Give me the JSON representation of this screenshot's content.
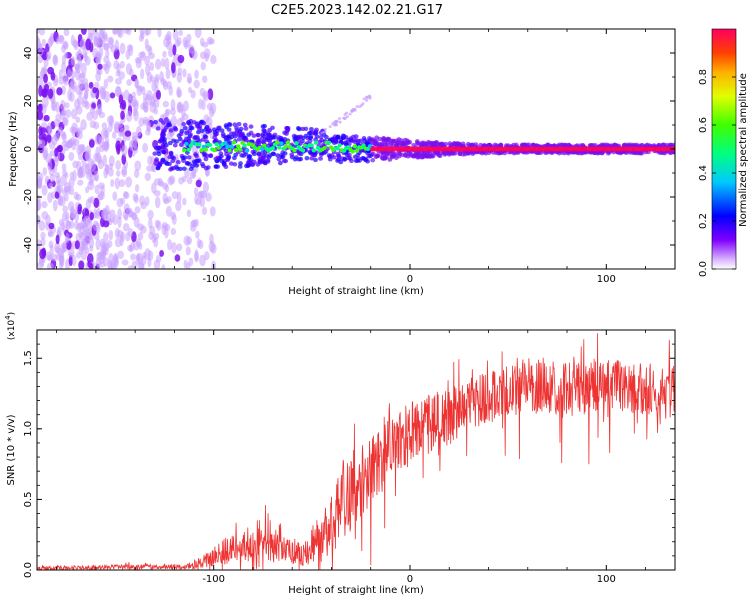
{
  "figure": {
    "title": "C2E5.2023.142.02.21.G17"
  },
  "chart_data": [
    {
      "type": "heatmap",
      "title": "C2E5.2023.142.02.21.G17",
      "xlabel": "Height of straight line (km)",
      "ylabel": "Frequency (Hz)",
      "xlim": [
        -190,
        135
      ],
      "ylim": [
        -50,
        50
      ],
      "x_ticks": [
        -100,
        0,
        100
      ],
      "y_ticks": [
        -40,
        -20,
        0,
        20,
        40
      ],
      "colorbar": {
        "label": "Normalized spectral amplitude",
        "range": [
          0,
          1
        ],
        "ticks": [
          "0.0",
          "0.2",
          "0.4",
          "0.6",
          "0.8"
        ],
        "colors": [
          "#ffffff",
          "#8000ff",
          "#0000ff",
          "#00c8ff",
          "#00ff80",
          "#40ff00",
          "#e0ff00",
          "#ffb000",
          "#ff4000",
          "#ff0060"
        ]
      },
      "features": {
        "noise_region_x": [
          -190,
          -105
        ],
        "signal_band_start_x": -130,
        "signal_center_freq": 0,
        "signal_band_halfwidth_hz_start": 8,
        "signal_band_halfwidth_hz_end": 1.5,
        "strong_signal_start_x": -20,
        "faint_branch": {
          "x": [
            -45,
            -20
          ],
          "y": [
            6,
            22
          ]
        }
      }
    },
    {
      "type": "line",
      "xlabel": "Height of straight line (km)",
      "ylabel": "SNR (10 * v/v)",
      "scale_note": "(x10^4)",
      "xlim": [
        -190,
        135
      ],
      "ylim": [
        0,
        1.7
      ],
      "x_ticks": [
        -100,
        0,
        100
      ],
      "y_ticks": [
        "0.0",
        "0.5",
        "1.0",
        "1.5"
      ],
      "series": [
        {
          "color": "#ee3333",
          "envelope": [
            {
              "x": -190,
              "base": 0.01,
              "spread": 0.02
            },
            {
              "x": -110,
              "base": 0.02,
              "spread": 0.03
            },
            {
              "x": -95,
              "base": 0.1,
              "spread": 0.15
            },
            {
              "x": -75,
              "base": 0.15,
              "spread": 0.2
            },
            {
              "x": -55,
              "base": 0.08,
              "spread": 0.12
            },
            {
              "x": -42,
              "base": 0.2,
              "spread": 0.25
            },
            {
              "x": -35,
              "base": 0.4,
              "spread": 0.45
            },
            {
              "x": -25,
              "base": 0.55,
              "spread": 0.4
            },
            {
              "x": -10,
              "base": 0.8,
              "spread": 0.4
            },
            {
              "x": 0,
              "base": 0.9,
              "spread": 0.35
            },
            {
              "x": 20,
              "base": 1.05,
              "spread": 0.3
            },
            {
              "x": 40,
              "base": 1.18,
              "spread": 0.28
            },
            {
              "x": 60,
              "base": 1.25,
              "spread": 0.3
            },
            {
              "x": 80,
              "base": 1.22,
              "spread": 0.32
            },
            {
              "x": 100,
              "base": 1.25,
              "spread": 0.3
            },
            {
              "x": 120,
              "base": 1.22,
              "spread": 0.3
            },
            {
              "x": 135,
              "base": 1.2,
              "spread": 0.3
            }
          ]
        }
      ]
    }
  ]
}
